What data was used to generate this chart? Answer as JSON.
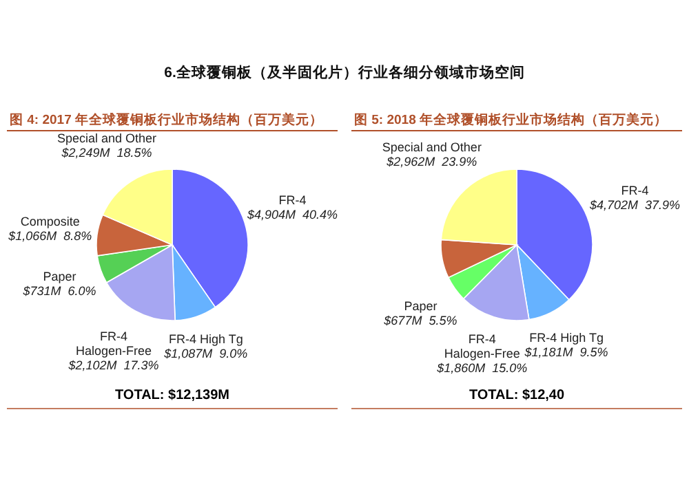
{
  "chart_data": [
    {
      "type": "other",
      "title": "6.全球覆铜板（及半固化片）行业各细分领域市场空间"
    },
    {
      "type": "pie",
      "title": "图 4:  2017 年全球覆铜板行业市场结构（百万美元）",
      "categories": [
        "FR-4",
        "FR-4 High Tg",
        "FR-4 Halogen-Free",
        "Paper",
        "Composite",
        "Special and Other"
      ],
      "values": [
        40.4,
        9.0,
        17.3,
        6.0,
        8.8,
        18.5
      ],
      "colors": [
        "#6666ff",
        "#66b2ff",
        "#a6a6f2",
        "#55d055",
        "#c8643c",
        "#ffff88"
      ],
      "value_labels": [
        "$4,904M  40.4%",
        "$1,087M  9.0%",
        "$2,102M  17.3%",
        "$731M  6.0%",
        "$1,066M  8.8%",
        "$2,249M  18.5%"
      ],
      "annotations": [
        "TOTAL: $12,139M"
      ]
    },
    {
      "type": "pie",
      "title": "图 5:  2018 年全球覆铜板行业市场结构（百万美元）",
      "categories": [
        "FR-4",
        "FR-4 High Tg",
        "FR-4 Halogen-Free",
        "Paper",
        null,
        "Special and Other"
      ],
      "values": [
        37.9,
        9.5,
        15.0,
        5.5,
        8.2,
        23.9
      ],
      "colors": [
        "#6666ff",
        "#66b2ff",
        "#a6a6f2",
        "#66ff66",
        "#c8643c",
        "#ffff88"
      ],
      "value_labels": [
        "$4,702M  37.9%",
        "$1,181M  9.5%",
        "$1,860M  15.0%",
        "$677M  5.5%",
        null,
        "$2,962M  23.9%"
      ],
      "annotations": [
        "TOTAL: $12,40"
      ]
    }
  ]
}
